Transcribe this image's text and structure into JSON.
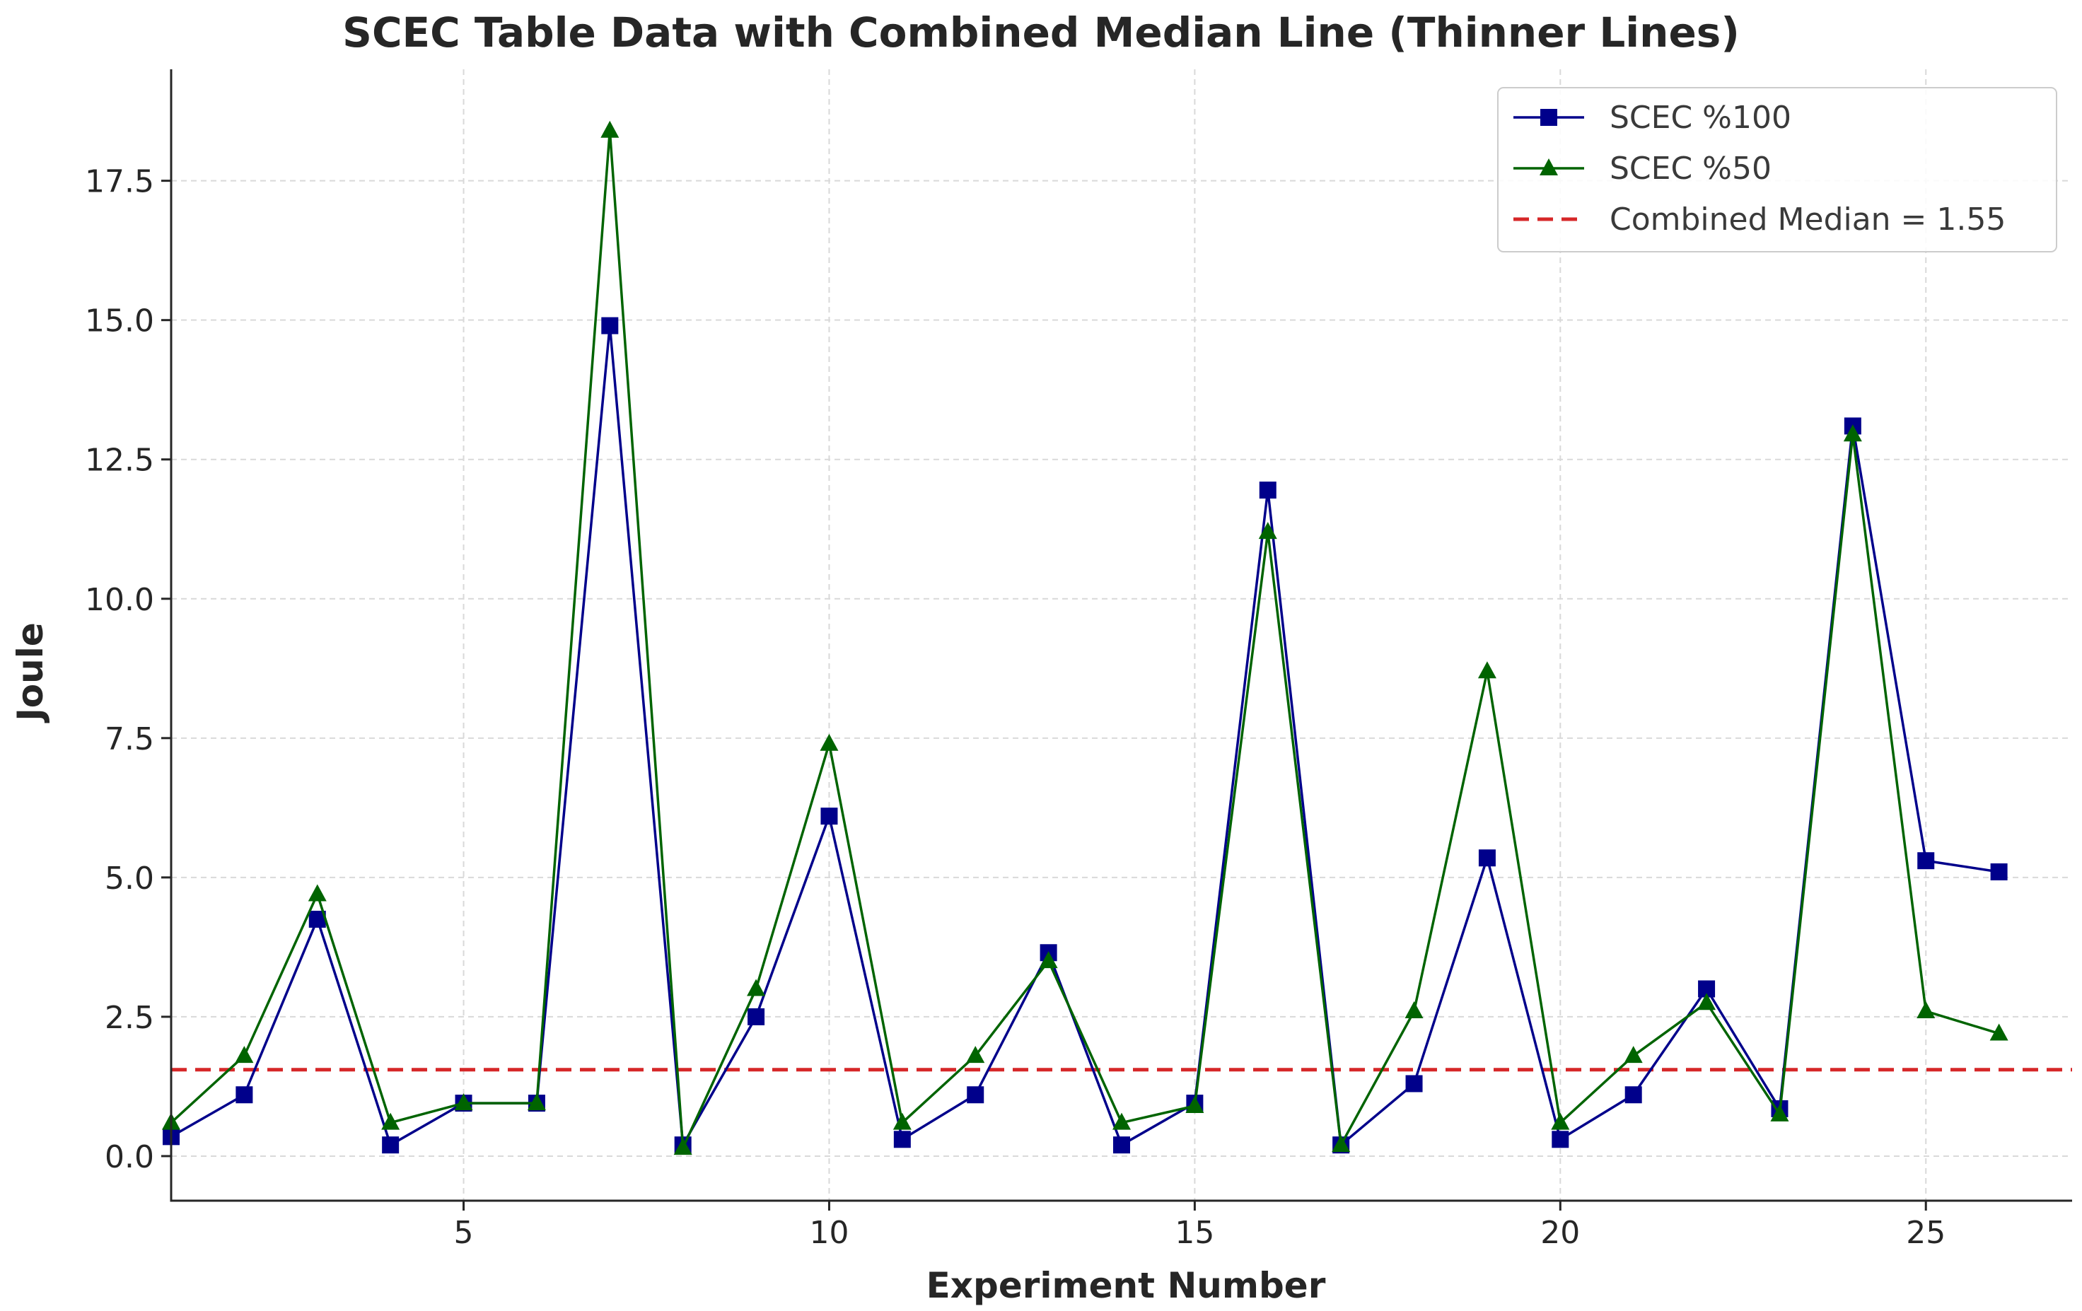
{
  "chart_data": {
    "type": "line",
    "title": "SCEC Table Data with Combined Median Line (Thinner Lines)",
    "xlabel": "Experiment Number",
    "ylabel": "Joule",
    "xlim": [
      1,
      27
    ],
    "ylim": [
      -0.8,
      19.5
    ],
    "xticks": [
      5,
      10,
      15,
      20,
      25
    ],
    "yticks": [
      0.0,
      2.5,
      5.0,
      7.5,
      10.0,
      12.5,
      15.0,
      17.5
    ],
    "ytick_labels": [
      "0.0",
      "2.5",
      "5.0",
      "7.5",
      "10.0",
      "12.5",
      "15.0",
      "17.5"
    ],
    "grid": true,
    "legend_position": "top-right",
    "x": [
      1,
      2,
      3,
      4,
      5,
      6,
      7,
      8,
      9,
      10,
      11,
      12,
      13,
      14,
      15,
      16,
      17,
      18,
      19,
      20,
      21,
      22,
      23,
      24,
      25,
      26
    ],
    "series": [
      {
        "name": "SCEC %100",
        "color": "#00008b",
        "marker": "square",
        "values": [
          0.35,
          1.1,
          4.25,
          0.2,
          0.95,
          0.95,
          14.9,
          0.2,
          2.5,
          6.1,
          0.3,
          1.1,
          3.65,
          0.2,
          0.95,
          11.95,
          0.2,
          1.3,
          5.35,
          0.3,
          1.1,
          3.0,
          0.85,
          13.1,
          5.3,
          5.1
        ]
      },
      {
        "name": "SCEC %50",
        "color": "#006400",
        "marker": "triangle",
        "values": [
          0.6,
          1.8,
          4.7,
          0.6,
          0.95,
          0.95,
          18.4,
          0.15,
          3.0,
          7.4,
          0.6,
          1.8,
          3.5,
          0.6,
          0.9,
          11.2,
          0.2,
          2.6,
          8.7,
          0.6,
          1.8,
          2.75,
          0.75,
          12.95,
          2.6,
          2.2
        ]
      }
    ],
    "reference_line": {
      "name": "Combined Median = 1.55",
      "value": 1.55,
      "color": "#d62728",
      "style": "dashed"
    }
  }
}
